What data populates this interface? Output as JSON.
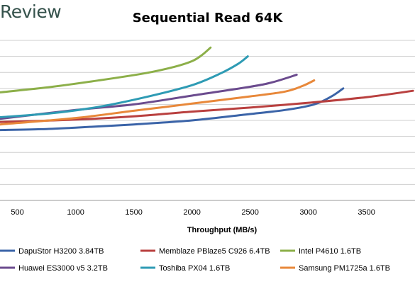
{
  "header": {
    "logo_text": "Review"
  },
  "chart_data": {
    "type": "line",
    "title": "Sequential Read 64K",
    "xlabel": "Throughput (MB/s)",
    "ylabel": "",
    "xlim": [
      350,
      3900
    ],
    "ylim": [
      0,
      10
    ],
    "x_ticks": [
      500,
      1000,
      1500,
      2000,
      2500,
      3000,
      3500
    ],
    "y_gridlines": [
      0,
      1,
      2,
      3,
      4,
      5,
      6,
      7,
      8,
      9,
      10
    ],
    "grid": true,
    "legend_position": "bottom",
    "series": [
      {
        "name": "DapuStor H3200 3.84TB",
        "color": "#3b64a8",
        "points": [
          [
            350,
            4.4
          ],
          [
            700,
            4.45
          ],
          [
            1000,
            4.55
          ],
          [
            1500,
            4.75
          ],
          [
            2000,
            5.0
          ],
          [
            2500,
            5.4
          ],
          [
            2800,
            5.65
          ],
          [
            3050,
            6.0
          ],
          [
            3200,
            6.5
          ],
          [
            3300,
            7.0
          ]
        ]
      },
      {
        "name": "Memblaze PBlaze5 C926 6.4TB",
        "color": "#b9403f",
        "points": [
          [
            350,
            4.9
          ],
          [
            1000,
            5.05
          ],
          [
            1500,
            5.25
          ],
          [
            2000,
            5.55
          ],
          [
            2500,
            5.8
          ],
          [
            3000,
            6.1
          ],
          [
            3500,
            6.45
          ],
          [
            3900,
            6.85
          ]
        ]
      },
      {
        "name": "Intel P4610 1.6TB",
        "color": "#8caf49",
        "points": [
          [
            350,
            6.75
          ],
          [
            800,
            7.1
          ],
          [
            1200,
            7.5
          ],
          [
            1600,
            7.95
          ],
          [
            1850,
            8.35
          ],
          [
            2000,
            8.7
          ],
          [
            2080,
            9.05
          ],
          [
            2160,
            9.55
          ]
        ]
      },
      {
        "name": "Huawei ES3000 v5 3.2TB",
        "color": "#6b4b8e",
        "points": [
          [
            350,
            5.1
          ],
          [
            1000,
            5.65
          ],
          [
            1500,
            6.0
          ],
          [
            2000,
            6.55
          ],
          [
            2500,
            7.1
          ],
          [
            2700,
            7.4
          ],
          [
            2900,
            7.85
          ]
        ]
      },
      {
        "name": "Toshiba PX04 1.6TB",
        "color": "#2e9bb4",
        "points": [
          [
            350,
            5.2
          ],
          [
            800,
            5.45
          ],
          [
            1200,
            5.85
          ],
          [
            1600,
            6.45
          ],
          [
            2000,
            7.2
          ],
          [
            2250,
            7.95
          ],
          [
            2400,
            8.55
          ],
          [
            2480,
            9.0
          ]
        ]
      },
      {
        "name": "Samsung PM1725a 1.6TB",
        "color": "#e8883a",
        "points": [
          [
            350,
            4.75
          ],
          [
            1000,
            5.15
          ],
          [
            1500,
            5.6
          ],
          [
            2000,
            6.05
          ],
          [
            2500,
            6.5
          ],
          [
            2800,
            6.8
          ],
          [
            2950,
            7.15
          ],
          [
            3050,
            7.5
          ]
        ]
      }
    ]
  }
}
